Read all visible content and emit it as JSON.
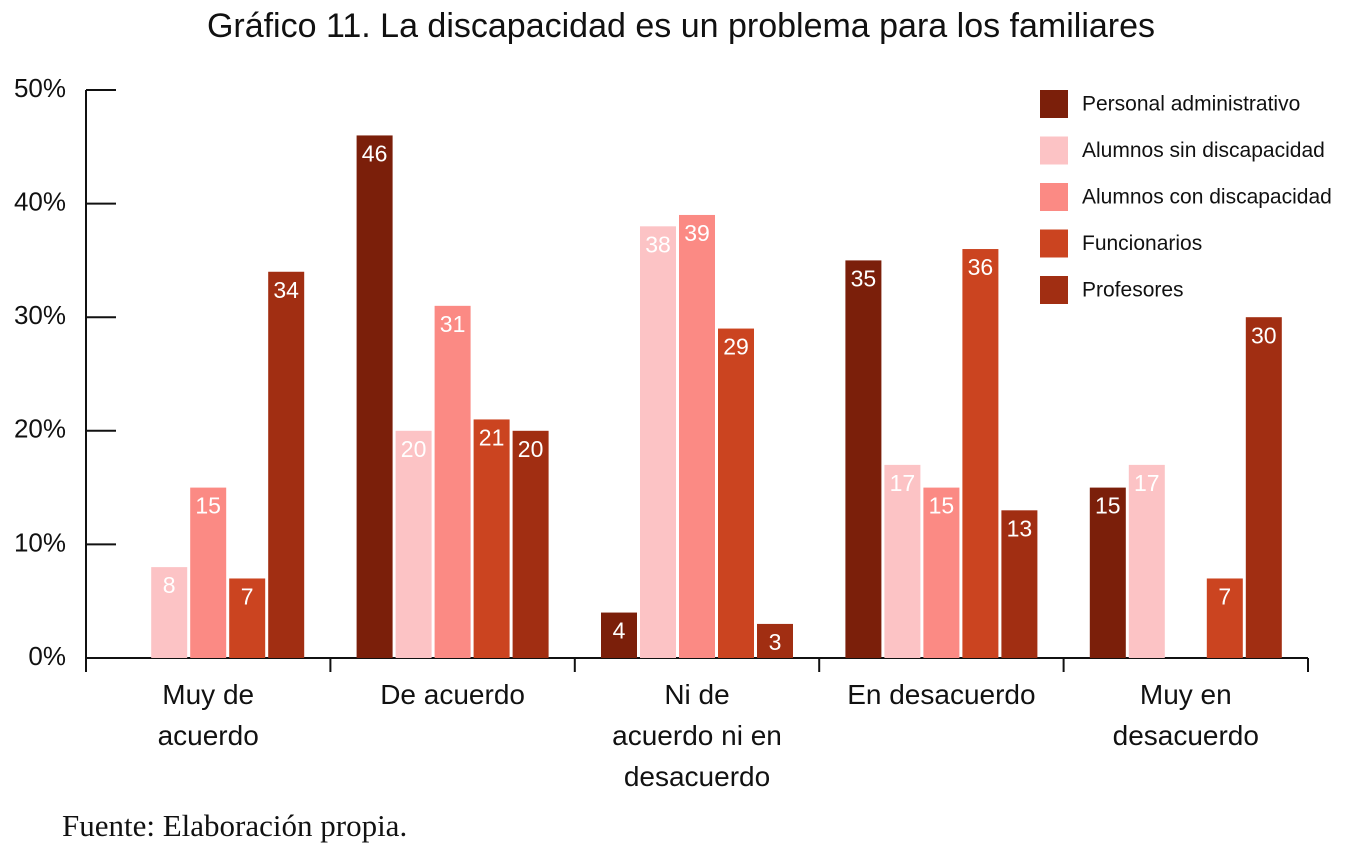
{
  "chart_data": {
    "type": "bar",
    "title": "Gráfico 11. La discapacidad es un problema para los familiares",
    "categories": [
      "Muy de acuerdo",
      "De acuerdo",
      "Ni de acuerdo ni en desacuerdo",
      "En desacuerdo",
      "Muy en desacuerdo"
    ],
    "series": [
      {
        "name": "Personal administrativo",
        "color": "#7b1f0a",
        "values": [
          null,
          46,
          4,
          35,
          15
        ]
      },
      {
        "name": "Alumnos sin discapacidad",
        "color": "#fcc3c5",
        "values": [
          8,
          20,
          38,
          17,
          17
        ]
      },
      {
        "name": "Alumnos con discapacidad",
        "color": "#fb8a84",
        "values": [
          15,
          31,
          39,
          15,
          null
        ]
      },
      {
        "name": "Funcionarios",
        "color": "#cb4420",
        "values": [
          7,
          21,
          29,
          36,
          7
        ]
      },
      {
        "name": "Profesores",
        "color": "#a12e12",
        "values": [
          34,
          20,
          3,
          13,
          30
        ]
      }
    ],
    "ylim": [
      0,
      50
    ],
    "yticks": [
      {
        "value": 0,
        "label": "0%"
      },
      {
        "value": 10,
        "label": "10%"
      },
      {
        "value": 20,
        "label": "20%"
      },
      {
        "value": 30,
        "label": "30%"
      },
      {
        "value": 40,
        "label": "40%"
      },
      {
        "value": 50,
        "label": "50%"
      }
    ],
    "legend": "top-right",
    "note": "Fuente: Elaboración propia."
  }
}
